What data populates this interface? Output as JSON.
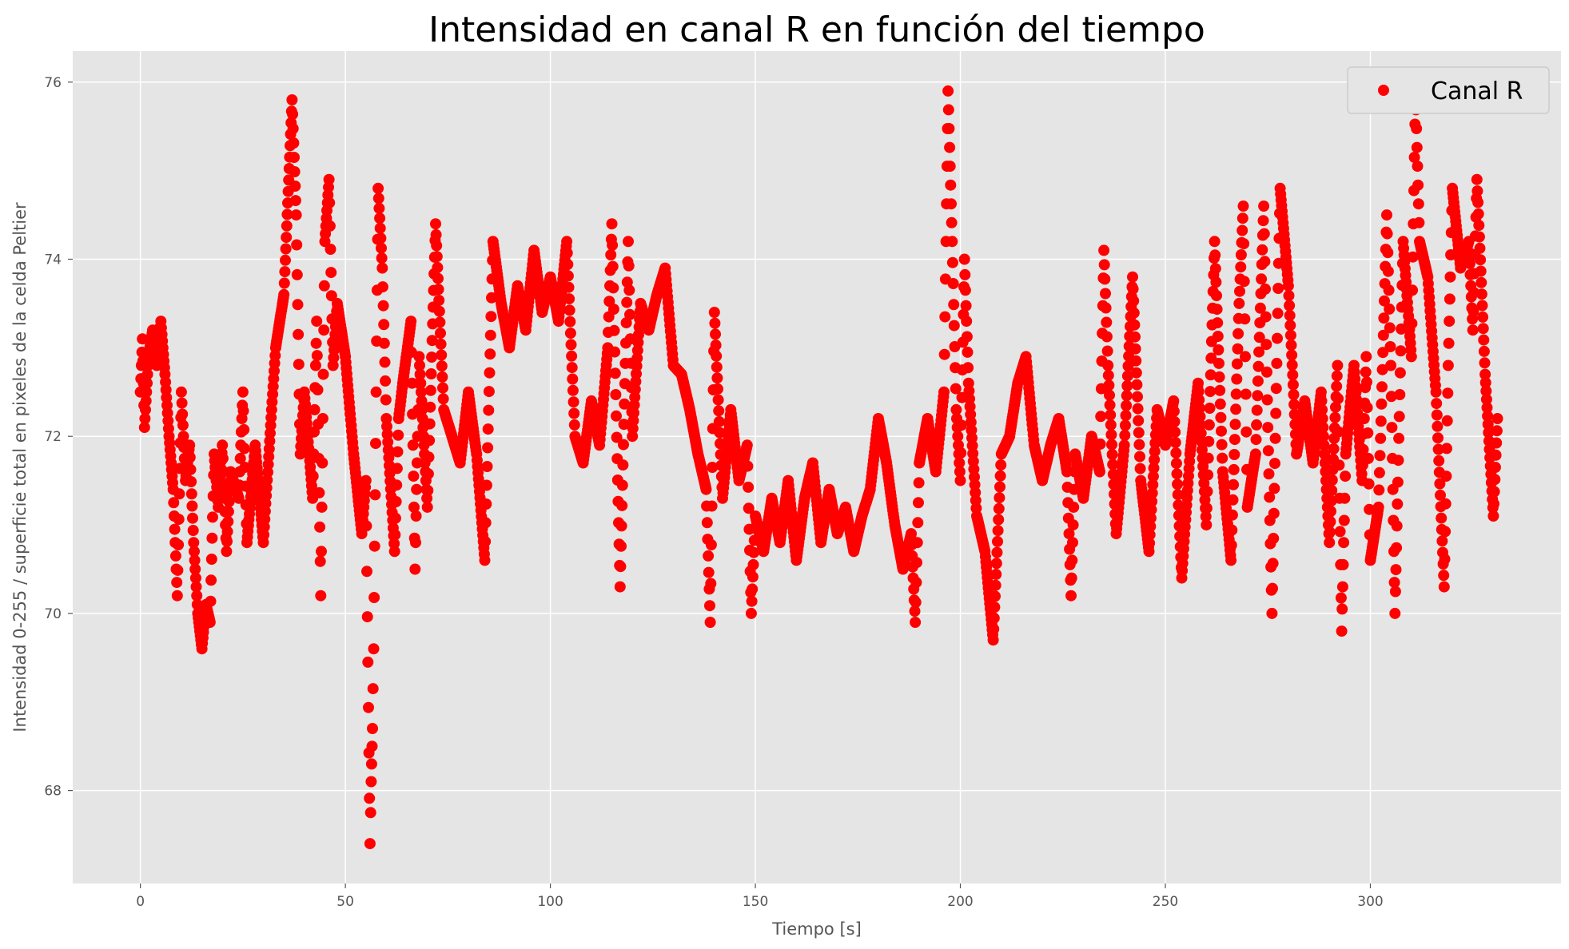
{
  "chart_data": {
    "type": "scatter",
    "title": "Intensidad en canal R en función del tiempo",
    "xlabel": "Tiempo [s]",
    "ylabel": "Intensidad 0-255 / superficie total en pixeles de la celda Peltier",
    "xlim": [
      -16.5,
      346.5
    ],
    "ylim": [
      66.95,
      76.35
    ],
    "xticks": [
      0,
      50,
      100,
      150,
      200,
      250,
      300
    ],
    "xtick_labels": [
      "0",
      "50",
      "100",
      "150",
      "200",
      "250",
      "300"
    ],
    "yticks": [
      68,
      70,
      72,
      74,
      76
    ],
    "ytick_labels": [
      "68",
      "70",
      "72",
      "74",
      "76"
    ],
    "grid": true,
    "legend_position": "top-right",
    "style": {
      "background": "#e5e5e5",
      "grid_color": "#ffffff",
      "marker_color": "#ff0000"
    },
    "series": [
      {
        "name": "Canal R",
        "color": "#ff0000",
        "marker": "circle",
        "x_range": [
          0,
          331
        ],
        "key_points": [
          [
            0,
            72.5
          ],
          [
            0.5,
            73.1
          ],
          [
            1,
            72.1
          ],
          [
            2,
            72.9
          ],
          [
            3,
            73.2
          ],
          [
            4,
            72.8
          ],
          [
            5,
            73.3
          ],
          [
            6,
            72.7
          ],
          [
            7,
            72.0
          ],
          [
            8,
            71.4
          ],
          [
            9,
            70.2
          ],
          [
            10,
            72.5
          ],
          [
            11,
            71.5
          ],
          [
            12,
            71.9
          ],
          [
            13,
            70.8
          ],
          [
            14,
            70.0
          ],
          [
            15,
            69.6
          ],
          [
            16,
            70.1
          ],
          [
            17,
            69.9
          ],
          [
            18,
            71.8
          ],
          [
            19,
            71.2
          ],
          [
            20,
            71.9
          ],
          [
            21,
            70.7
          ],
          [
            22,
            71.6
          ],
          [
            24,
            71.3
          ],
          [
            25,
            72.5
          ],
          [
            26,
            70.8
          ],
          [
            28,
            71.9
          ],
          [
            30,
            70.8
          ],
          [
            32,
            72.3
          ],
          [
            33,
            73.0
          ],
          [
            35,
            73.6
          ],
          [
            37,
            75.8
          ],
          [
            38,
            74.5
          ],
          [
            39,
            71.8
          ],
          [
            40,
            72.5
          ],
          [
            42,
            71.3
          ],
          [
            43,
            73.3
          ],
          [
            44,
            70.2
          ],
          [
            45,
            74.2
          ],
          [
            46,
            74.9
          ],
          [
            47,
            72.8
          ],
          [
            48,
            73.5
          ],
          [
            50,
            72.9
          ],
          [
            52,
            71.8
          ],
          [
            54,
            70.9
          ],
          [
            55,
            71.5
          ],
          [
            56,
            67.4
          ],
          [
            56.3,
            68.1
          ],
          [
            56.6,
            68.7
          ],
          [
            56.9,
            69.6
          ],
          [
            57.5,
            72.5
          ],
          [
            58,
            74.8
          ],
          [
            59,
            73.9
          ],
          [
            60,
            72.2
          ],
          [
            62,
            70.7
          ],
          [
            63,
            72.2
          ],
          [
            64,
            72.6
          ],
          [
            66,
            73.3
          ],
          [
            67,
            70.5
          ],
          [
            68,
            72.9
          ],
          [
            70,
            71.2
          ],
          [
            72,
            74.4
          ],
          [
            74,
            72.3
          ],
          [
            76,
            72.0
          ],
          [
            78,
            71.7
          ],
          [
            80,
            72.5
          ],
          [
            82,
            71.8
          ],
          [
            84,
            70.6
          ],
          [
            86,
            74.2
          ],
          [
            88,
            73.5
          ],
          [
            90,
            73.0
          ],
          [
            92,
            73.7
          ],
          [
            94,
            73.2
          ],
          [
            96,
            74.1
          ],
          [
            98,
            73.4
          ],
          [
            100,
            73.8
          ],
          [
            102,
            73.3
          ],
          [
            104,
            74.2
          ],
          [
            106,
            72.0
          ],
          [
            108,
            71.7
          ],
          [
            110,
            72.4
          ],
          [
            112,
            71.9
          ],
          [
            114,
            73.0
          ],
          [
            115,
            74.4
          ],
          [
            117,
            70.3
          ],
          [
            119,
            74.2
          ],
          [
            120,
            72.0
          ],
          [
            122,
            73.5
          ],
          [
            124,
            73.2
          ],
          [
            126,
            73.6
          ],
          [
            128,
            73.9
          ],
          [
            130,
            72.8
          ],
          [
            132,
            72.7
          ],
          [
            134,
            72.3
          ],
          [
            136,
            71.8
          ],
          [
            138,
            71.4
          ],
          [
            139,
            69.9
          ],
          [
            140,
            73.4
          ],
          [
            142,
            71.3
          ],
          [
            144,
            72.3
          ],
          [
            146,
            71.5
          ],
          [
            148,
            71.9
          ],
          [
            149,
            70.0
          ],
          [
            150,
            71.1
          ],
          [
            152,
            70.7
          ],
          [
            154,
            71.3
          ],
          [
            156,
            70.8
          ],
          [
            158,
            71.5
          ],
          [
            160,
            70.6
          ],
          [
            162,
            71.3
          ],
          [
            164,
            71.7
          ],
          [
            166,
            70.8
          ],
          [
            168,
            71.4
          ],
          [
            170,
            70.9
          ],
          [
            172,
            71.2
          ],
          [
            174,
            70.7
          ],
          [
            176,
            71.1
          ],
          [
            178,
            71.4
          ],
          [
            180,
            72.2
          ],
          [
            182,
            71.7
          ],
          [
            184,
            71.0
          ],
          [
            186,
            70.5
          ],
          [
            188,
            70.9
          ],
          [
            189,
            69.9
          ],
          [
            190,
            71.7
          ],
          [
            192,
            72.2
          ],
          [
            194,
            71.6
          ],
          [
            196,
            72.5
          ],
          [
            197,
            75.9
          ],
          [
            198,
            74.2
          ],
          [
            199,
            72.3
          ],
          [
            200,
            71.5
          ],
          [
            201,
            74.0
          ],
          [
            202,
            72.6
          ],
          [
            204,
            71.1
          ],
          [
            206,
            70.7
          ],
          [
            208,
            69.7
          ],
          [
            210,
            71.8
          ],
          [
            212,
            72.0
          ],
          [
            214,
            72.6
          ],
          [
            216,
            72.9
          ],
          [
            218,
            71.9
          ],
          [
            220,
            71.5
          ],
          [
            222,
            71.9
          ],
          [
            224,
            72.2
          ],
          [
            226,
            71.6
          ],
          [
            227,
            70.2
          ],
          [
            228,
            71.8
          ],
          [
            230,
            71.3
          ],
          [
            232,
            72.0
          ],
          [
            234,
            71.6
          ],
          [
            235,
            74.1
          ],
          [
            236,
            72.8
          ],
          [
            238,
            70.9
          ],
          [
            240,
            71.9
          ],
          [
            242,
            73.8
          ],
          [
            244,
            71.5
          ],
          [
            246,
            70.7
          ],
          [
            248,
            72.3
          ],
          [
            250,
            71.9
          ],
          [
            252,
            72.4
          ],
          [
            254,
            70.4
          ],
          [
            256,
            71.8
          ],
          [
            258,
            72.6
          ],
          [
            260,
            71.0
          ],
          [
            262,
            74.2
          ],
          [
            264,
            71.6
          ],
          [
            266,
            70.6
          ],
          [
            268,
            73.5
          ],
          [
            269,
            74.6
          ],
          [
            270,
            71.2
          ],
          [
            272,
            71.8
          ],
          [
            274,
            74.6
          ],
          [
            275,
            72.1
          ],
          [
            276,
            70.0
          ],
          [
            278,
            74.8
          ],
          [
            280,
            73.7
          ],
          [
            282,
            71.8
          ],
          [
            284,
            72.4
          ],
          [
            286,
            71.7
          ],
          [
            288,
            72.5
          ],
          [
            290,
            70.8
          ],
          [
            292,
            72.8
          ],
          [
            293,
            69.8
          ],
          [
            294,
            71.8
          ],
          [
            296,
            72.8
          ],
          [
            298,
            71.5
          ],
          [
            299,
            72.9
          ],
          [
            300,
            70.6
          ],
          [
            302,
            71.2
          ],
          [
            304,
            74.5
          ],
          [
            305,
            72.8
          ],
          [
            306,
            70.0
          ],
          [
            308,
            74.2
          ],
          [
            310,
            72.9
          ],
          [
            311,
            75.9
          ],
          [
            312,
            74.2
          ],
          [
            314,
            73.8
          ],
          [
            316,
            72.5
          ],
          [
            318,
            70.3
          ],
          [
            319,
            72.8
          ],
          [
            320,
            74.8
          ],
          [
            322,
            73.9
          ],
          [
            324,
            74.2
          ],
          [
            325,
            73.2
          ],
          [
            326,
            74.9
          ],
          [
            328,
            72.7
          ],
          [
            330,
            71.1
          ],
          [
            331,
            72.2
          ]
        ]
      }
    ],
    "legend": {
      "entries": [
        "Canal R"
      ]
    }
  }
}
